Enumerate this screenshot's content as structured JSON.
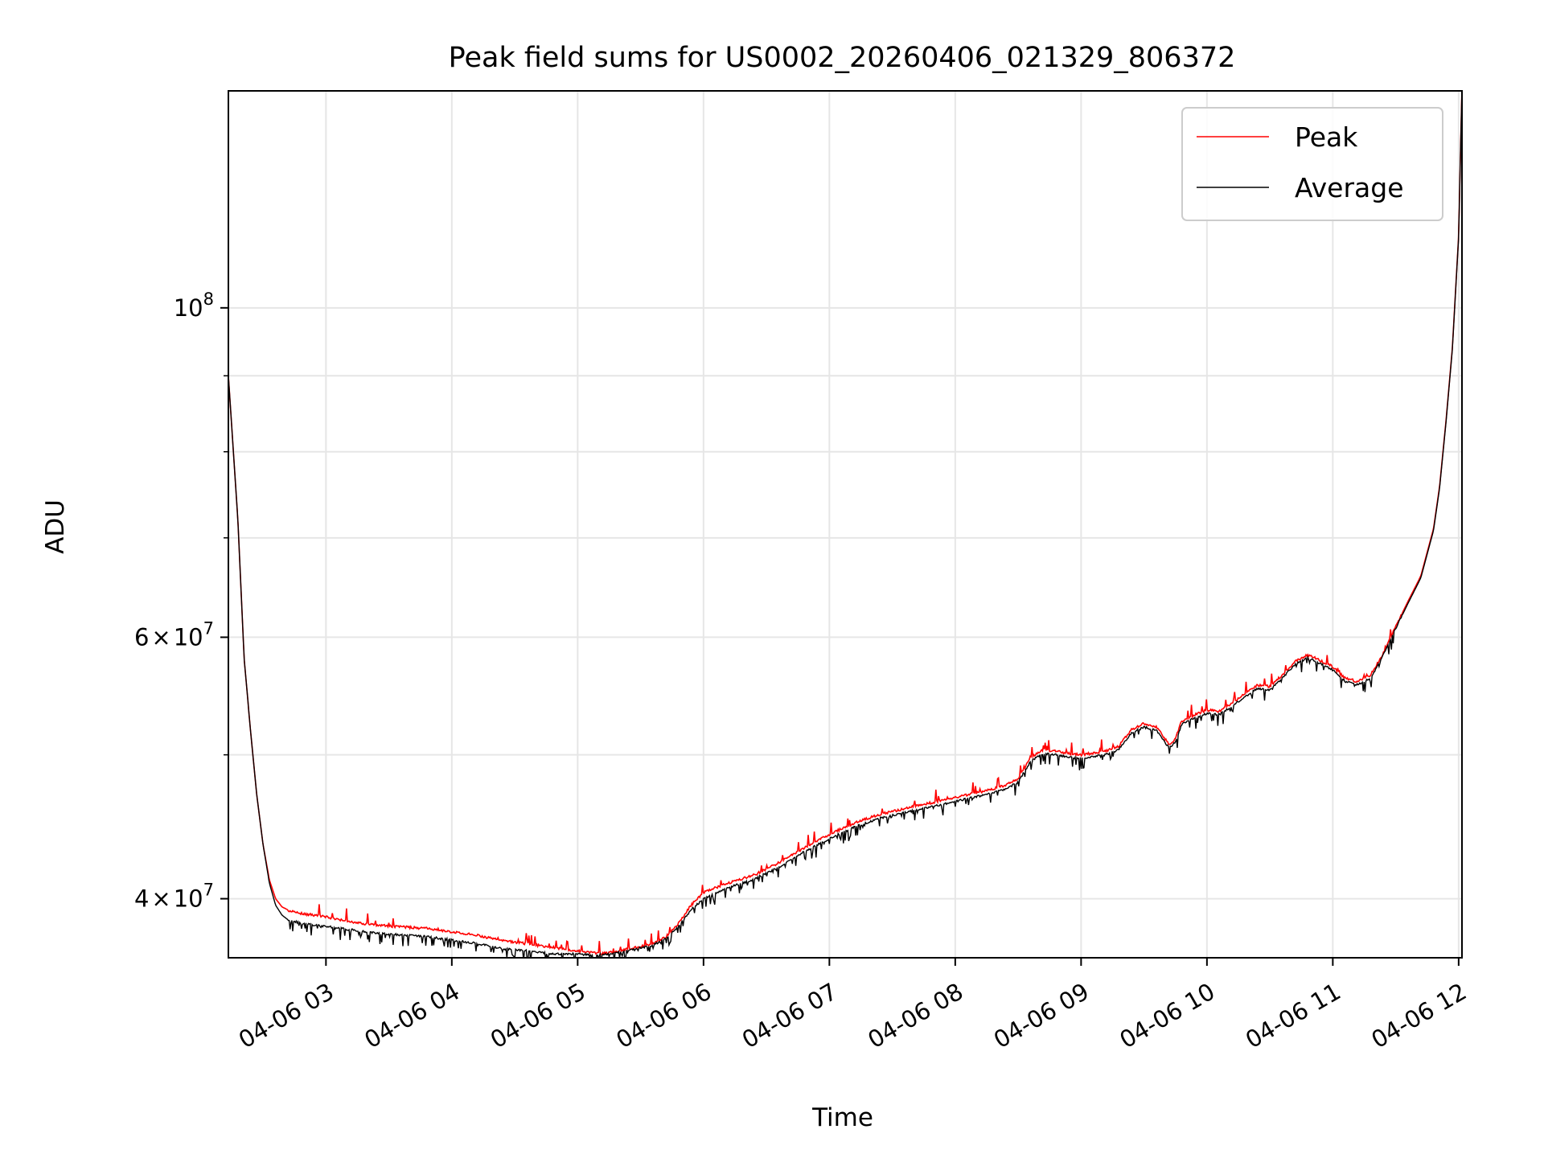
{
  "chart_data": {
    "type": "line",
    "title": "Peak field sums for US0002_20260406_021329_806372",
    "xlabel": "Time",
    "ylabel": "ADU",
    "yscale": "log",
    "ylim": [
      36500000,
      140000000
    ],
    "xlim": [
      2.2247,
      12.0264
    ],
    "grid": true,
    "legend_position": "top-right",
    "x_ticks": [
      {
        "value": 3,
        "label": "04-06 03"
      },
      {
        "value": 4,
        "label": "04-06 04"
      },
      {
        "value": 5,
        "label": "04-06 05"
      },
      {
        "value": 6,
        "label": "04-06 06"
      },
      {
        "value": 7,
        "label": "04-06 07"
      },
      {
        "value": 8,
        "label": "04-06 08"
      },
      {
        "value": 9,
        "label": "04-06 09"
      },
      {
        "value": 10,
        "label": "04-06 10"
      },
      {
        "value": 11,
        "label": "04-06 11"
      },
      {
        "value": 12,
        "label": "04-06 12"
      }
    ],
    "y_major_ticks": [
      {
        "value": 100000000,
        "base": "10",
        "exp": "8",
        "mult": ""
      },
      {
        "value": 60000000,
        "base": "10",
        "exp": "7",
        "mult": "6"
      },
      {
        "value": 40000000,
        "base": "10",
        "exp": "7",
        "mult": "4"
      }
    ],
    "y_minor_ticks": [
      50000000,
      70000000,
      80000000,
      90000000
    ],
    "series": [
      {
        "name": "Peak",
        "color": "#ff0000",
        "x": [
          2.225,
          2.3,
          2.35,
          2.4,
          2.45,
          2.5,
          2.55,
          2.6,
          2.65,
          2.7,
          2.75,
          2.8,
          2.9,
          3.0,
          3.2,
          3.4,
          3.6,
          3.8,
          4.0,
          4.2,
          4.4,
          4.6,
          4.8,
          5.0,
          5.1,
          5.2,
          5.3,
          5.4,
          5.5,
          5.6,
          5.7,
          5.8,
          5.9,
          6.0,
          6.2,
          6.4,
          6.6,
          6.8,
          7.0,
          7.2,
          7.4,
          7.6,
          7.8,
          8.0,
          8.2,
          8.4,
          8.5,
          8.6,
          8.7,
          8.8,
          8.9,
          9.0,
          9.2,
          9.3,
          9.4,
          9.5,
          9.6,
          9.7,
          9.75,
          9.8,
          9.9,
          10.0,
          10.1,
          10.2,
          10.3,
          10.4,
          10.5,
          10.6,
          10.7,
          10.8,
          10.9,
          11.0,
          11.1,
          11.2,
          11.3,
          11.4,
          11.5,
          11.6,
          11.7,
          11.8,
          11.85,
          11.9,
          11.95,
          12.0,
          12.026
        ],
        "values": [
          90000000,
          72000000,
          58000000,
          52000000,
          47000000,
          43500000,
          41200000,
          40000000,
          39500000,
          39300000,
          39200000,
          39100000,
          39000000,
          38900000,
          38600000,
          38400000,
          38300000,
          38200000,
          38000000,
          37800000,
          37500000,
          37300000,
          37100000,
          36900000,
          36800000,
          36750000,
          36850000,
          37000000,
          37150000,
          37300000,
          37700000,
          38500000,
          39600000,
          40400000,
          41000000,
          41500000,
          42300000,
          43300000,
          44200000,
          45000000,
          45600000,
          46000000,
          46400000,
          46800000,
          47200000,
          47700000,
          48200000,
          49800000,
          50400000,
          50300000,
          50100000,
          50000000,
          50300000,
          50700000,
          52000000,
          52500000,
          52200000,
          50800000,
          51300000,
          52700000,
          53200000,
          53600000,
          53500000,
          54200000,
          55000000,
          55700000,
          55600000,
          56600000,
          57800000,
          58400000,
          57900000,
          57300000,
          56300000,
          56000000,
          56600000,
          58500000,
          61000000,
          63500000,
          66000000,
          71000000,
          76000000,
          84000000,
          94000000,
          112000000,
          140000000
        ]
      },
      {
        "name": "Average",
        "color": "#000000",
        "x": [
          2.225,
          2.3,
          2.35,
          2.4,
          2.45,
          2.5,
          2.55,
          2.6,
          2.65,
          2.7,
          2.75,
          2.8,
          2.9,
          3.0,
          3.2,
          3.4,
          3.6,
          3.8,
          4.0,
          4.2,
          4.4,
          4.6,
          4.8,
          5.0,
          5.1,
          5.2,
          5.3,
          5.4,
          5.5,
          5.6,
          5.7,
          5.8,
          5.9,
          6.0,
          6.2,
          6.4,
          6.6,
          6.8,
          7.0,
          7.2,
          7.4,
          7.6,
          7.8,
          8.0,
          8.2,
          8.4,
          8.5,
          8.6,
          8.7,
          8.8,
          8.9,
          9.0,
          9.2,
          9.3,
          9.4,
          9.5,
          9.6,
          9.7,
          9.75,
          9.8,
          9.9,
          10.0,
          10.1,
          10.2,
          10.3,
          10.4,
          10.5,
          10.6,
          10.7,
          10.8,
          10.9,
          11.0,
          11.1,
          11.2,
          11.3,
          11.4,
          11.5,
          11.6,
          11.7,
          11.8,
          11.85,
          11.9,
          11.95,
          12.0,
          12.026
        ],
        "values": [
          90000000,
          72000000,
          58000000,
          52000000,
          47000000,
          43500000,
          41000000,
          39600000,
          39000000,
          38700000,
          38600000,
          38500000,
          38400000,
          38300000,
          38100000,
          37900000,
          37800000,
          37700000,
          37500000,
          37300000,
          37000000,
          36900000,
          36700000,
          36700000,
          36650000,
          36650000,
          36750000,
          36900000,
          37050000,
          37200000,
          37600000,
          38300000,
          39300000,
          40000000,
          40700000,
          41200000,
          42000000,
          43000000,
          43900000,
          44700000,
          45300000,
          45700000,
          46100000,
          46500000,
          46900000,
          47400000,
          47900000,
          49500000,
          50100000,
          50000000,
          49800000,
          49700000,
          50000000,
          50400000,
          51700000,
          52200000,
          51900000,
          50500000,
          51000000,
          52400000,
          52900000,
          53300000,
          53200000,
          53900000,
          54700000,
          55400000,
          55300000,
          56300000,
          57500000,
          58100000,
          57600000,
          57000000,
          56000000,
          55700000,
          56300000,
          58300000,
          60800000,
          63300000,
          65800000,
          70800000,
          75800000,
          83800000,
          93800000,
          111800000,
          140000000
        ]
      }
    ]
  }
}
